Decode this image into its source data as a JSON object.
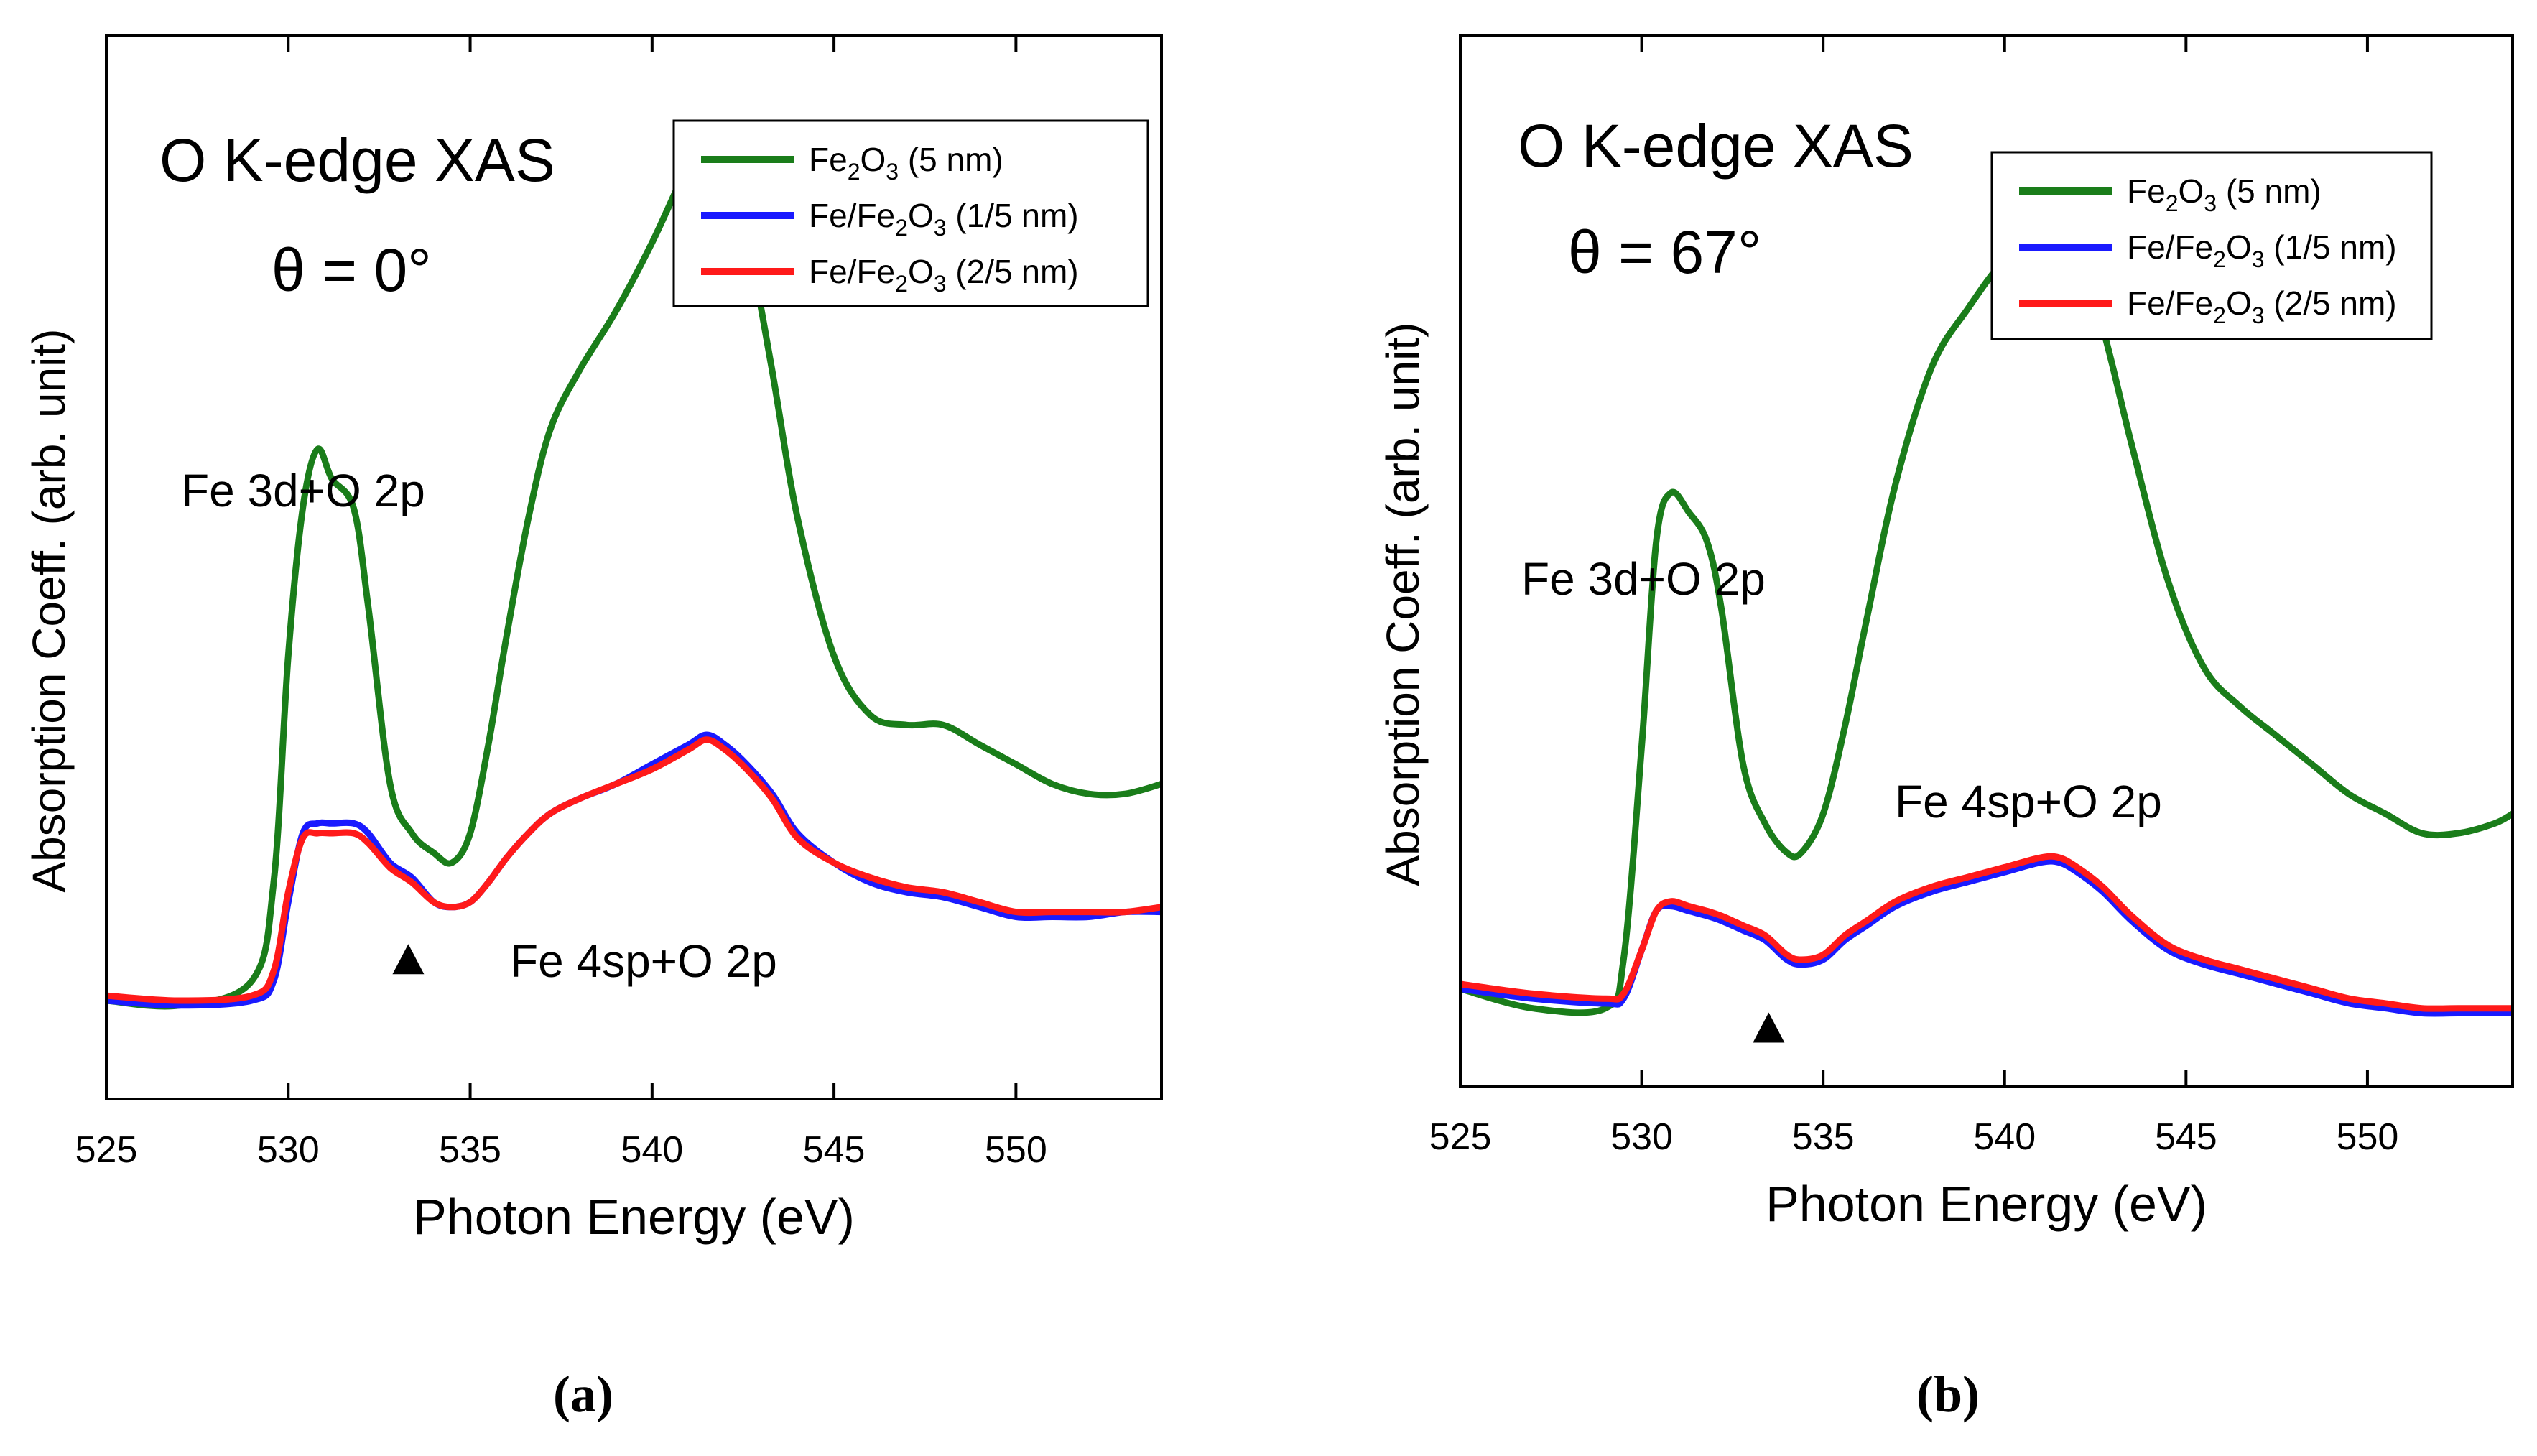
{
  "figure": {
    "panels": [
      "a",
      "b"
    ]
  },
  "chart_data": [
    {
      "type": "line",
      "panel_label": "(a)",
      "title": "O K-edge XAS",
      "subtitle": "θ = 0°",
      "xlabel": "Photon Energy (eV)",
      "ylabel": "Absorption Coeff. (arb. unit)",
      "xlim": [
        525,
        554
      ],
      "ylim": [
        0,
        1.08
      ],
      "xticks": [
        525,
        530,
        535,
        540,
        545,
        550
      ],
      "yticks": [],
      "legend_position": "top-right",
      "annotations": {
        "peak1": "Fe 3d+O 2p",
        "peak2": "Fe 4sp+O 2p",
        "marker": "▲"
      },
      "marker_x": 533.3,
      "series": [
        {
          "name": "Fe2O3 (5 nm)",
          "label_main": "Fe",
          "label_sub1": "2",
          "label_mid": "O",
          "label_sub2": "3",
          "label_tail": " (5 nm)",
          "color": "#1a7d1a",
          "x": [
            525,
            527,
            529,
            529.6,
            530.0,
            530.4,
            530.8,
            531.2,
            531.8,
            532.2,
            532.8,
            533.4,
            534.0,
            534.5,
            535.0,
            535.5,
            536.0,
            536.6,
            537.2,
            538.0,
            539.0,
            540.0,
            541.0,
            541.5,
            542.0,
            542.6,
            543.3,
            544.0,
            545.0,
            546.0,
            547.0,
            548.0,
            549.0,
            550.0,
            551.0,
            552.0,
            553.0,
            554.0
          ],
          "y": [
            0.1,
            0.095,
            0.12,
            0.22,
            0.45,
            0.6,
            0.66,
            0.63,
            0.6,
            0.5,
            0.32,
            0.27,
            0.25,
            0.24,
            0.27,
            0.36,
            0.47,
            0.59,
            0.68,
            0.74,
            0.8,
            0.87,
            0.95,
            0.98,
            0.96,
            0.88,
            0.74,
            0.59,
            0.45,
            0.39,
            0.38,
            0.38,
            0.36,
            0.34,
            0.32,
            0.31,
            0.31,
            0.32
          ]
        },
        {
          "name": "Fe/Fe2O3 (1/5 nm)",
          "label_main": "Fe/Fe",
          "label_sub1": "2",
          "label_mid": "O",
          "label_sub2": "3",
          "label_tail": " (1/5 nm)",
          "color": "#1a1aff",
          "x": [
            525,
            527,
            529,
            529.6,
            530.0,
            530.4,
            530.8,
            531.2,
            531.8,
            532.2,
            532.8,
            533.4,
            534.0,
            534.5,
            535.0,
            535.5,
            536.0,
            536.6,
            537.2,
            538.0,
            539.0,
            540.0,
            541.0,
            541.5,
            542.0,
            542.6,
            543.3,
            544.0,
            545.0,
            546.0,
            547.0,
            548.0,
            549.0,
            550.0,
            551.0,
            552.0,
            553.0,
            554.0
          ],
          "y": [
            0.1,
            0.095,
            0.1,
            0.12,
            0.2,
            0.27,
            0.28,
            0.28,
            0.28,
            0.27,
            0.24,
            0.225,
            0.2,
            0.195,
            0.2,
            0.22,
            0.245,
            0.27,
            0.29,
            0.305,
            0.32,
            0.34,
            0.36,
            0.37,
            0.36,
            0.34,
            0.31,
            0.27,
            0.24,
            0.22,
            0.21,
            0.205,
            0.195,
            0.185,
            0.185,
            0.185,
            0.19,
            0.19
          ]
        },
        {
          "name": "Fe/Fe2O3 (2/5 nm)",
          "label_main": "Fe/Fe",
          "label_sub1": "2",
          "label_mid": "O",
          "label_sub2": "3",
          "label_tail": " (2/5 nm)",
          "color": "#ff1a1a",
          "x": [
            525,
            527,
            529,
            529.6,
            530.0,
            530.4,
            530.8,
            531.2,
            531.8,
            532.2,
            532.8,
            533.4,
            534.0,
            534.5,
            535.0,
            535.5,
            536.0,
            536.6,
            537.2,
            538.0,
            539.0,
            540.0,
            541.0,
            541.5,
            542.0,
            542.6,
            543.3,
            544.0,
            545.0,
            546.0,
            547.0,
            548.0,
            549.0,
            550.0,
            551.0,
            552.0,
            553.0,
            554.0
          ],
          "y": [
            0.105,
            0.1,
            0.105,
            0.13,
            0.21,
            0.265,
            0.27,
            0.27,
            0.27,
            0.26,
            0.235,
            0.22,
            0.2,
            0.195,
            0.2,
            0.22,
            0.245,
            0.27,
            0.29,
            0.305,
            0.32,
            0.335,
            0.355,
            0.365,
            0.355,
            0.335,
            0.305,
            0.265,
            0.24,
            0.225,
            0.215,
            0.21,
            0.2,
            0.19,
            0.19,
            0.19,
            0.19,
            0.195
          ]
        }
      ]
    },
    {
      "type": "line",
      "panel_label": "(b)",
      "title": "O K-edge XAS",
      "subtitle": "θ = 67°",
      "xlabel": "Photon Energy (eV)",
      "ylabel": "Absorption Coeff. (arb. unit)",
      "xlim": [
        525,
        554
      ],
      "ylim": [
        0,
        1.08
      ],
      "xticks": [
        525,
        530,
        535,
        540,
        545,
        550
      ],
      "yticks": [],
      "legend_position": "top-right",
      "annotations": {
        "peak1": "Fe 3d+O 2p",
        "peak2": "Fe 4sp+O 2p",
        "marker": "▲"
      },
      "marker_x": 533.5,
      "series": [
        {
          "name": "Fe2O3 (5 nm)",
          "label_main": "Fe",
          "label_sub1": "2",
          "label_mid": "O",
          "label_sub2": "3",
          "label_tail": " (5 nm)",
          "color": "#1a7d1a",
          "x": [
            525,
            527,
            529,
            529.5,
            530.0,
            530.4,
            530.8,
            531.3,
            531.8,
            532.2,
            532.8,
            533.4,
            534.0,
            534.4,
            535.0,
            535.6,
            536.2,
            537.0,
            538.0,
            539.0,
            540.0,
            541.0,
            541.5,
            542.0,
            542.7,
            543.5,
            544.5,
            545.5,
            546.5,
            547.5,
            548.5,
            549.5,
            550.5,
            551.5,
            552.5,
            553.5,
            554.0
          ],
          "y": [
            0.1,
            0.08,
            0.08,
            0.13,
            0.35,
            0.56,
            0.61,
            0.59,
            0.56,
            0.49,
            0.33,
            0.27,
            0.24,
            0.24,
            0.28,
            0.37,
            0.48,
            0.62,
            0.74,
            0.8,
            0.85,
            0.88,
            0.88,
            0.85,
            0.78,
            0.66,
            0.52,
            0.43,
            0.39,
            0.36,
            0.33,
            0.3,
            0.28,
            0.26,
            0.26,
            0.27,
            0.28
          ]
        },
        {
          "name": "Fe/Fe2O3 (1/5 nm)",
          "label_main": "Fe/Fe",
          "label_sub1": "2",
          "label_mid": "O",
          "label_sub2": "3",
          "label_tail": " (1/5 nm)",
          "color": "#1a1aff",
          "x": [
            525,
            527,
            529,
            529.5,
            530.0,
            530.4,
            530.8,
            531.3,
            531.8,
            532.2,
            532.8,
            533.4,
            534.0,
            534.4,
            535.0,
            535.6,
            536.2,
            537.0,
            538.0,
            539.0,
            540.0,
            541.0,
            541.5,
            542.0,
            542.7,
            543.5,
            544.5,
            545.5,
            546.5,
            547.5,
            548.5,
            549.5,
            550.5,
            551.5,
            552.5,
            553.5,
            554.0
          ],
          "y": [
            0.1,
            0.09,
            0.085,
            0.09,
            0.14,
            0.18,
            0.185,
            0.18,
            0.175,
            0.17,
            0.16,
            0.15,
            0.13,
            0.125,
            0.13,
            0.15,
            0.165,
            0.185,
            0.2,
            0.21,
            0.22,
            0.23,
            0.23,
            0.22,
            0.2,
            0.17,
            0.14,
            0.125,
            0.115,
            0.105,
            0.095,
            0.085,
            0.08,
            0.075,
            0.075,
            0.075,
            0.075
          ]
        },
        {
          "name": "Fe/Fe2O3 (2/5 nm)",
          "label_main": "Fe/Fe",
          "label_sub1": "2",
          "label_mid": "O",
          "label_sub2": "3",
          "label_tail": " (2/5 nm)",
          "color": "#ff1a1a",
          "x": [
            525,
            527,
            529,
            529.5,
            530.0,
            530.4,
            530.8,
            531.3,
            531.8,
            532.2,
            532.8,
            533.4,
            534.0,
            534.4,
            535.0,
            535.6,
            536.2,
            537.0,
            538.0,
            539.0,
            540.0,
            541.0,
            541.5,
            542.0,
            542.7,
            543.5,
            544.5,
            545.5,
            546.5,
            547.5,
            548.5,
            549.5,
            550.5,
            551.5,
            552.5,
            553.5,
            554.0
          ],
          "y": [
            0.105,
            0.095,
            0.09,
            0.095,
            0.14,
            0.18,
            0.19,
            0.185,
            0.18,
            0.175,
            0.165,
            0.155,
            0.135,
            0.13,
            0.135,
            0.155,
            0.17,
            0.19,
            0.205,
            0.215,
            0.225,
            0.235,
            0.235,
            0.225,
            0.205,
            0.175,
            0.145,
            0.13,
            0.12,
            0.11,
            0.1,
            0.09,
            0.085,
            0.08,
            0.08,
            0.08,
            0.08
          ]
        }
      ]
    }
  ]
}
